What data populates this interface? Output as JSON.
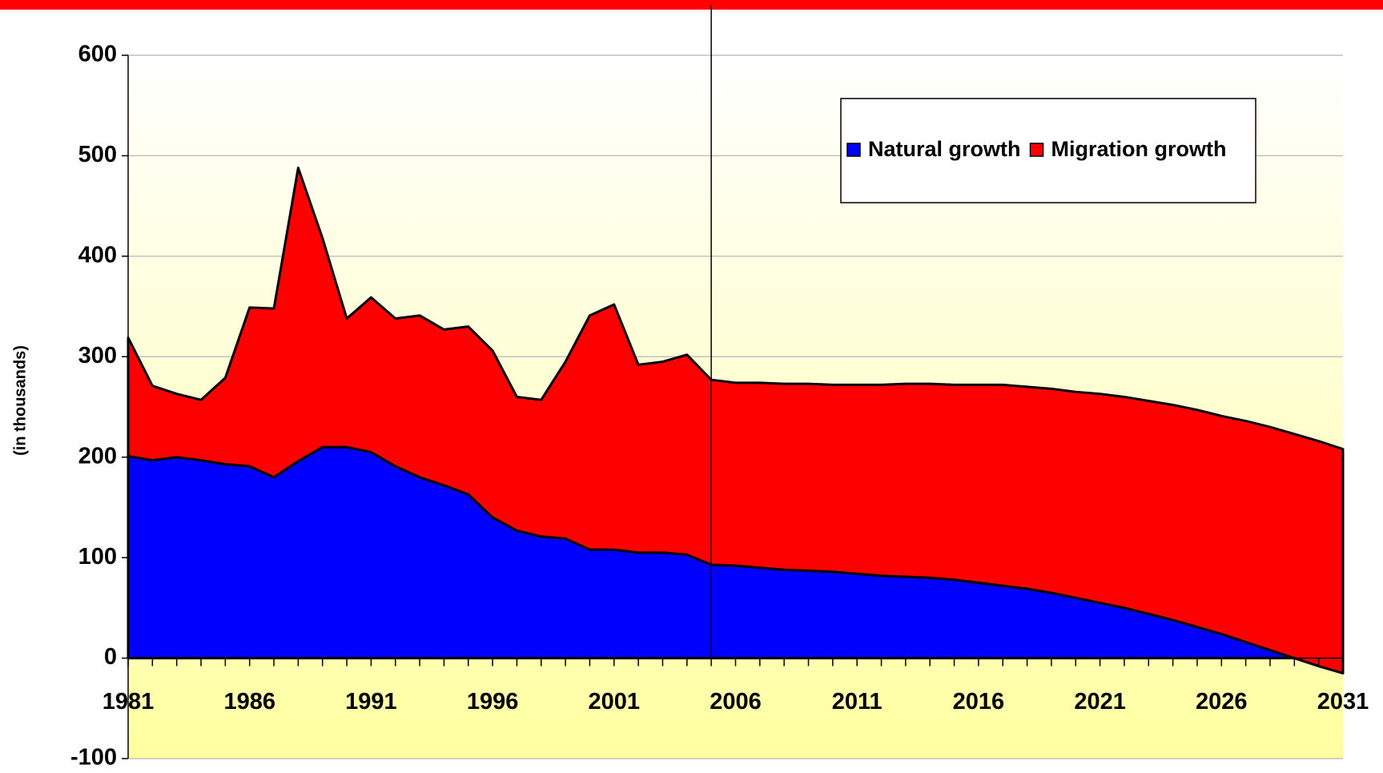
{
  "chart_data": {
    "type": "stacked_area",
    "y_axis_label": "(in thousands)",
    "x": [
      1981,
      1982,
      1983,
      1984,
      1985,
      1986,
      1987,
      1988,
      1989,
      1990,
      1991,
      1992,
      1993,
      1994,
      1995,
      1996,
      1997,
      1998,
      1999,
      2000,
      2001,
      2002,
      2003,
      2004,
      2005,
      2006,
      2007,
      2008,
      2009,
      2010,
      2011,
      2012,
      2013,
      2014,
      2015,
      2016,
      2017,
      2018,
      2019,
      2020,
      2021,
      2022,
      2023,
      2024,
      2025,
      2026,
      2027,
      2028,
      2029,
      2030,
      2031
    ],
    "series": [
      {
        "name": "Natural growth",
        "color": "#0000ff",
        "values": [
          201,
          197,
          200,
          197,
          193,
          191,
          180,
          196,
          210,
          210,
          205,
          191,
          180,
          172,
          163,
          140,
          127,
          121,
          119,
          108,
          108,
          105,
          105,
          103,
          93,
          92,
          90,
          88,
          87,
          86,
          84,
          82,
          81,
          80,
          78,
          75,
          72,
          69,
          65,
          60,
          55,
          50,
          44,
          38,
          31,
          24,
          16,
          8,
          0,
          -8,
          -15
        ]
      },
      {
        "name": "Migration growth",
        "color": "#ff0000",
        "values": [
          118,
          74,
          63,
          60,
          86,
          158,
          168,
          292,
          208,
          128,
          154,
          147,
          161,
          155,
          167,
          166,
          133,
          136,
          176,
          233,
          244,
          187,
          190,
          199,
          184,
          182,
          184,
          185,
          186,
          186,
          188,
          190,
          192,
          193,
          194,
          197,
          200,
          201,
          203,
          205,
          208,
          210,
          212,
          214,
          216,
          217,
          220,
          222,
          223,
          224,
          223
        ]
      }
    ],
    "xlim": [
      1981,
      2031
    ],
    "xticks": [
      1981,
      1986,
      1991,
      1996,
      2001,
      2006,
      2011,
      2016,
      2021,
      2026,
      2031
    ],
    "ylim": [
      -100,
      600
    ],
    "yticks": [
      -100,
      0,
      100,
      200,
      300,
      400,
      500,
      600
    ],
    "grid": true,
    "reference_line_x": 2005,
    "legend": "top-right"
  }
}
